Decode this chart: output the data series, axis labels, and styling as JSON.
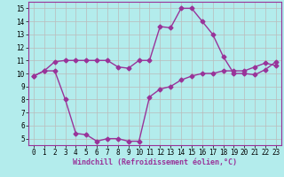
{
  "xlabel": "Windchill (Refroidissement éolien,°C)",
  "bg_color": "#b3ecec",
  "grid_color": "#bbbbbb",
  "line_color": "#993399",
  "xlim": [
    -0.5,
    23.5
  ],
  "ylim": [
    4.5,
    15.5
  ],
  "yticks": [
    5,
    6,
    7,
    8,
    9,
    10,
    11,
    12,
    13,
    14,
    15
  ],
  "xticks": [
    0,
    1,
    2,
    3,
    4,
    5,
    6,
    7,
    8,
    9,
    10,
    11,
    12,
    13,
    14,
    15,
    16,
    17,
    18,
    19,
    20,
    21,
    22,
    23
  ],
  "upper_line_x": [
    0,
    1,
    2,
    3,
    4,
    5,
    6,
    7,
    8,
    9,
    10,
    11,
    12,
    13,
    14,
    15,
    16,
    17,
    18,
    19,
    20,
    21,
    22,
    23
  ],
  "upper_line_y": [
    9.8,
    10.2,
    10.9,
    11.0,
    11.0,
    11.0,
    11.0,
    11.0,
    10.5,
    10.4,
    11.0,
    11.0,
    13.6,
    13.5,
    15.0,
    15.0,
    14.0,
    13.0,
    11.3,
    10.0,
    10.0,
    9.9,
    10.3,
    10.9
  ],
  "lower_line_x": [
    0,
    1,
    2,
    3,
    4,
    5,
    6,
    7,
    8,
    9,
    10,
    11,
    12,
    13,
    14,
    15,
    16,
    17,
    18,
    19,
    20,
    21,
    22,
    23
  ],
  "lower_line_y": [
    9.8,
    10.2,
    10.2,
    8.0,
    5.4,
    5.3,
    4.8,
    5.0,
    5.0,
    4.8,
    4.8,
    8.2,
    8.8,
    9.0,
    9.5,
    9.8,
    10.0,
    10.0,
    10.2,
    10.2,
    10.2,
    10.5,
    10.8,
    10.6
  ],
  "marker_size": 2.5,
  "line_width": 1.0,
  "tick_fontsize": 5.5,
  "xlabel_fontsize": 6.0
}
